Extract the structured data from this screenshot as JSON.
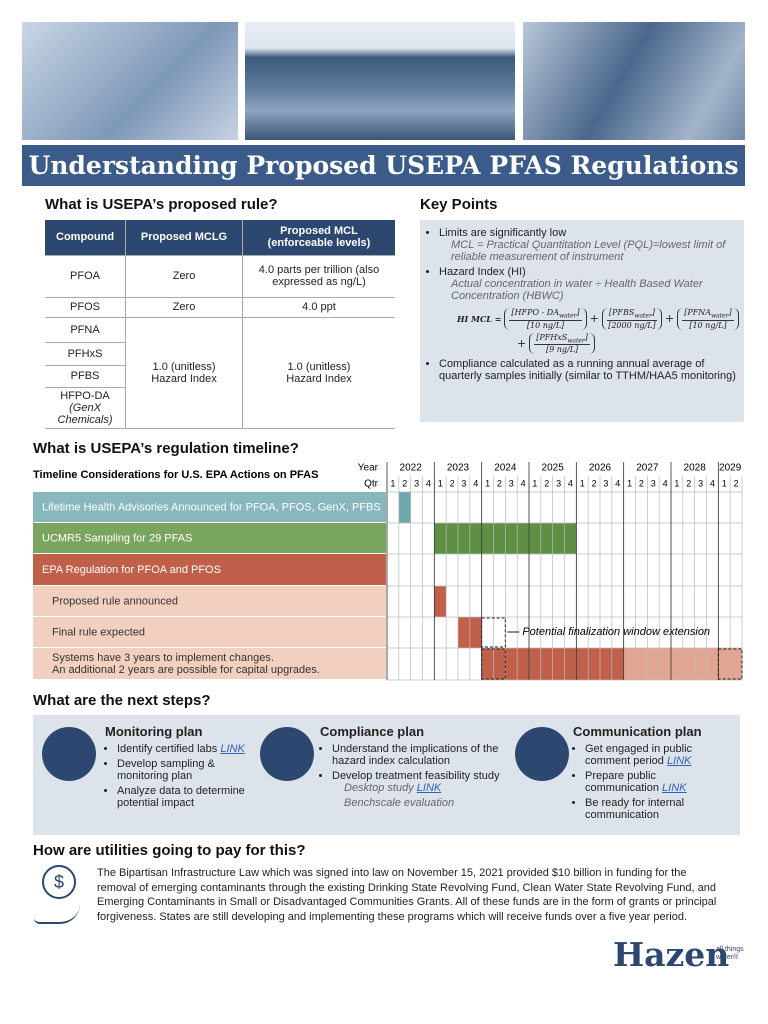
{
  "header": {
    "title": "Understanding Proposed USEPA PFAS Regulations"
  },
  "rule": {
    "heading": "What is USEPA’s proposed rule?",
    "table": {
      "headers": [
        "Compound",
        "Proposed MCLG",
        "Proposed MCL (enforceable levels)"
      ],
      "rows": [
        [
          "PFOA",
          "Zero",
          "4.0 parts per trillion (also expressed as ng/L)"
        ],
        [
          "PFOS",
          "Zero",
          "4.0 ppt"
        ]
      ],
      "group": {
        "compounds": [
          "PFNA",
          "PFHxS",
          "PFBS",
          "HFPO-DA"
        ],
        "compound_note": "(GenX Chemicals)",
        "mclg": "1.0 (unitless) Hazard Index",
        "mcl": "1.0 (unitless) Hazard Index"
      }
    }
  },
  "key_points": {
    "heading": "Key Points",
    "items": [
      {
        "text": "Limits are significantly low",
        "sub": [
          "MCL = Practical Quantitation Level (PQL)=lowest limit of reliable measurement of instrument"
        ]
      },
      {
        "text": "Hazard Index (HI)",
        "sub": [
          "Actual concentration in water ÷ Health Based Water Concentration (HBWC)"
        ]
      },
      {
        "text": "Compliance calculated as a running annual average of quarterly samples initially (similar to TTHM/HAA5 monitoring)"
      }
    ],
    "formula": {
      "lhs": "HI MCL =",
      "plus": "+",
      "close": "]",
      "terms": [
        {
          "name": "[HFPO - DA",
          "sub": "water",
          "den": "[10 ng/L]"
        },
        {
          "name": "[PFBS",
          "sub": "water",
          "den": "[2000 ng/L]"
        },
        {
          "name": "[PFNA",
          "sub": "water",
          "den": "[10 ng/L]"
        },
        {
          "name": "[PFHxS",
          "sub": "water",
          "den": "[9 ng/L]"
        }
      ]
    }
  },
  "timeline": {
    "heading": "What is USEPA’s regulation timeline?",
    "subtitle": "Timeline Considerations for U.S. EPA Actions on PFAS",
    "year_label": "Year",
    "qtr_label": "Qtr",
    "years": [
      2022,
      2023,
      2024,
      2025,
      2026,
      2027,
      2028,
      2029
    ],
    "quarters": [
      1,
      2,
      3,
      4,
      1,
      2,
      3,
      4,
      1,
      2,
      3,
      4,
      1,
      2,
      3,
      4,
      1,
      2,
      3,
      4,
      1,
      2,
      3,
      4,
      1,
      2,
      3,
      4,
      1,
      2
    ],
    "rows": [
      {
        "lines": [
          "Lifetime Health Advisories Announced for PFOA, PFOS, GenX, PFBS"
        ]
      },
      {
        "lines": [
          "UCMR5 Sampling for 29 PFAS"
        ]
      },
      {
        "lines": [
          "EPA Regulation for PFOA and PFOS"
        ]
      },
      {
        "lines": [
          "Proposed rule announced"
        ]
      },
      {
        "lines": [
          "Final rule expected"
        ]
      },
      {
        "lines": [
          "Systems have 3 years to implement changes.",
          "An additional 2 years are possible for capital upgrades."
        ]
      }
    ],
    "annotation": "Potential finalization window extension"
  },
  "next_steps": {
    "heading": "What are the next steps?",
    "plans": [
      {
        "title": "Monitoring plan",
        "items": [
          {
            "text": "Identify certified labs",
            "link": "LINK"
          },
          {
            "text": "Develop sampling & monitoring plan"
          },
          {
            "text": "Analyze data to determine potential impact"
          }
        ]
      },
      {
        "title": "Compliance plan",
        "items": [
          {
            "text": "Understand the implications of the hazard index calculation"
          },
          {
            "text": "Develop treatment feasibility study",
            "sub": [
              {
                "text": "Desktop study",
                "link": "LINK"
              },
              {
                "text": "Benchscale evaluation"
              }
            ]
          }
        ]
      },
      {
        "title": "Communication plan",
        "items": [
          {
            "text": "Get engaged in public comment period",
            "link": "LINK"
          },
          {
            "text": "Prepare public communication",
            "link": "LINK"
          },
          {
            "text": "Be ready for internal communication"
          }
        ]
      }
    ]
  },
  "funding": {
    "heading": "How are utilities going to pay for this?",
    "icon": "$",
    "text": "The Bipartisan Infrastructure Law which was signed into law on November 15, 2021 provided $10 billion in funding for the removal of emerging contaminants through the existing Drinking State Revolving Fund, Clean Water State Revolving Fund, and Emerging Contaminants in Small or Disadvantaged Communities Grants. All of these funds are in the form of grants or principal forgiveness. States are still developing and implementing these programs which will receive funds over a five year period."
  },
  "footer": {
    "logo": "Hazen",
    "tagline": "all things water®"
  }
}
